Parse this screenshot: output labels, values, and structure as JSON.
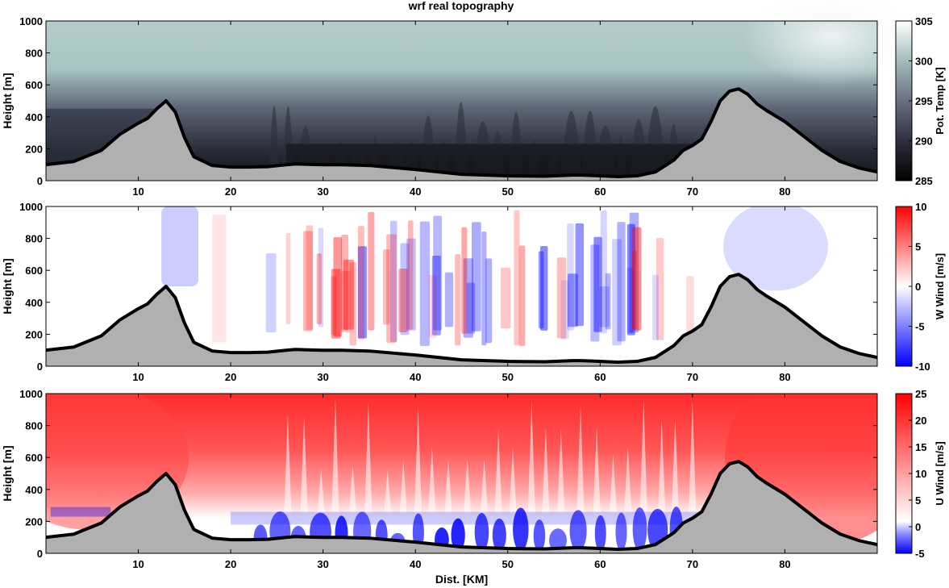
{
  "figure": {
    "title": "wrf real topography"
  },
  "colors": {
    "terrain_fill": "#b0b0b0",
    "terrain_line": "#000000",
    "theta_low": "#141418",
    "theta_mid": "#5c6474",
    "theta_high": "#a9c4c4",
    "theta_top": "#f4f7f7",
    "wind_neg": "#0000ff",
    "wind_zero": "#ffffff",
    "wind_pos": "#ff0000"
  },
  "chart_data": [
    {
      "type": "heatmap",
      "title": "wrf real topography",
      "xlabel": "",
      "ylabel": "Height [m]",
      "colorbar_label": "Pot. Temp [K]",
      "xlim": [
        0,
        90
      ],
      "ylim": [
        0,
        1000
      ],
      "x_ticks": [
        10,
        20,
        30,
        40,
        50,
        60,
        70,
        80
      ],
      "y_ticks": [
        0,
        200,
        400,
        600,
        800,
        1000
      ],
      "clim": [
        285,
        305
      ],
      "colorbar_ticks": [
        285,
        290,
        295,
        300,
        305
      ],
      "colormap": "bone",
      "terrain": {
        "x": [
          0,
          3,
          6,
          8,
          10,
          11,
          12,
          13,
          14,
          15,
          16,
          18,
          20,
          22,
          24,
          26,
          27,
          28,
          30,
          32,
          35,
          40,
          45,
          50,
          54,
          57,
          58,
          60,
          62,
          64,
          66,
          68,
          69,
          70,
          71,
          72,
          73,
          74,
          75,
          76,
          77,
          78,
          80,
          82,
          84,
          86,
          88,
          90
        ],
        "height": [
          100,
          120,
          190,
          290,
          360,
          390,
          450,
          500,
          430,
          270,
          150,
          95,
          85,
          85,
          88,
          100,
          105,
          103,
          100,
          100,
          95,
          70,
          40,
          30,
          28,
          35,
          35,
          30,
          25,
          30,
          55,
          130,
          190,
          220,
          260,
          370,
          500,
          560,
          575,
          540,
          480,
          440,
          370,
          280,
          190,
          120,
          80,
          55
        ]
      }
    },
    {
      "type": "heatmap",
      "title": "",
      "xlabel": "",
      "ylabel": "Height [m]",
      "colorbar_label": "W Wind [m/s]",
      "xlim": [
        0,
        90
      ],
      "ylim": [
        0,
        1000
      ],
      "x_ticks": [
        10,
        20,
        30,
        40,
        50,
        60,
        70,
        80
      ],
      "y_ticks": [
        0,
        200,
        400,
        600,
        800,
        1000
      ],
      "clim": [
        -10,
        10
      ],
      "colorbar_ticks": [
        -10,
        -5,
        0,
        5,
        10
      ],
      "colormap": "blue-white-red"
    },
    {
      "type": "heatmap",
      "title": "",
      "xlabel": "Dist. [KM]",
      "ylabel": "Height [m]",
      "colorbar_label": "U Wind [m/s]",
      "xlim": [
        0,
        90
      ],
      "ylim": [
        0,
        1000
      ],
      "x_ticks": [
        10,
        20,
        30,
        40,
        50,
        60,
        70,
        80
      ],
      "y_ticks": [
        0,
        200,
        400,
        600,
        800,
        1000
      ],
      "clim": [
        -5,
        25
      ],
      "colorbar_ticks": [
        -5,
        0,
        5,
        10,
        15,
        20,
        25
      ],
      "colormap": "blue-white-red"
    }
  ]
}
